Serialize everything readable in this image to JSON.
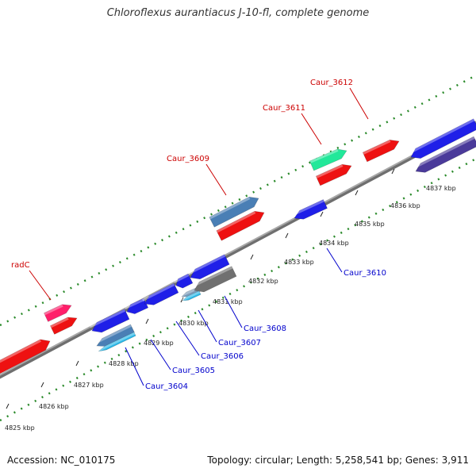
{
  "title": "Chloroflexus aurantiacus J-10-fl, complete genome",
  "footer": {
    "accession": "Accession: NC_010175",
    "summary": "Topology: circular; Length: 5,258,541 bp; Genes: 3,911"
  },
  "colors": {
    "backbone": "#888888",
    "outer_ring": "#2a8a2a",
    "forward_label": "#cc0000",
    "reverse_label": "#0000cc"
  },
  "ticks": [
    {
      "label": "4825 kbp"
    },
    {
      "label": "4826 kbp"
    },
    {
      "label": "4827 kbp"
    },
    {
      "label": "4828 kbp"
    },
    {
      "label": "4829 kbp"
    },
    {
      "label": "4830 kbp"
    },
    {
      "label": "4831 kbp"
    },
    {
      "label": "4832 kbp"
    },
    {
      "label": "4833 kbp"
    },
    {
      "label": "4834 kbp"
    },
    {
      "label": "4835 kbp"
    },
    {
      "label": "4836 kbp"
    },
    {
      "label": "4837 kbp"
    }
  ],
  "genes": [
    {
      "label": "radC",
      "strand": "forward",
      "color": "#ff1f6a"
    },
    {
      "label": "Caur_3609",
      "strand": "forward",
      "color": "#4a7fb5"
    },
    {
      "label": "Caur_3611",
      "strand": "forward",
      "color": "#22e89a"
    },
    {
      "label": "Caur_3612",
      "strand": "forward",
      "color": "#ee1111"
    },
    {
      "label": "Caur_3604",
      "strand": "reverse",
      "color": "#2ab8e8"
    },
    {
      "label": "Caur_3605",
      "strand": "reverse",
      "color": "#1f1fe8"
    },
    {
      "label": "Caur_3606",
      "strand": "reverse",
      "color": "#1f1fe8"
    },
    {
      "label": "Caur_3607",
      "strand": "reverse",
      "color": "#2ab8e8"
    },
    {
      "label": "Caur_3608",
      "strand": "reverse",
      "color": "#707070"
    },
    {
      "label": "Caur_3610",
      "strand": "reverse",
      "color": "#1f1fe8"
    }
  ]
}
